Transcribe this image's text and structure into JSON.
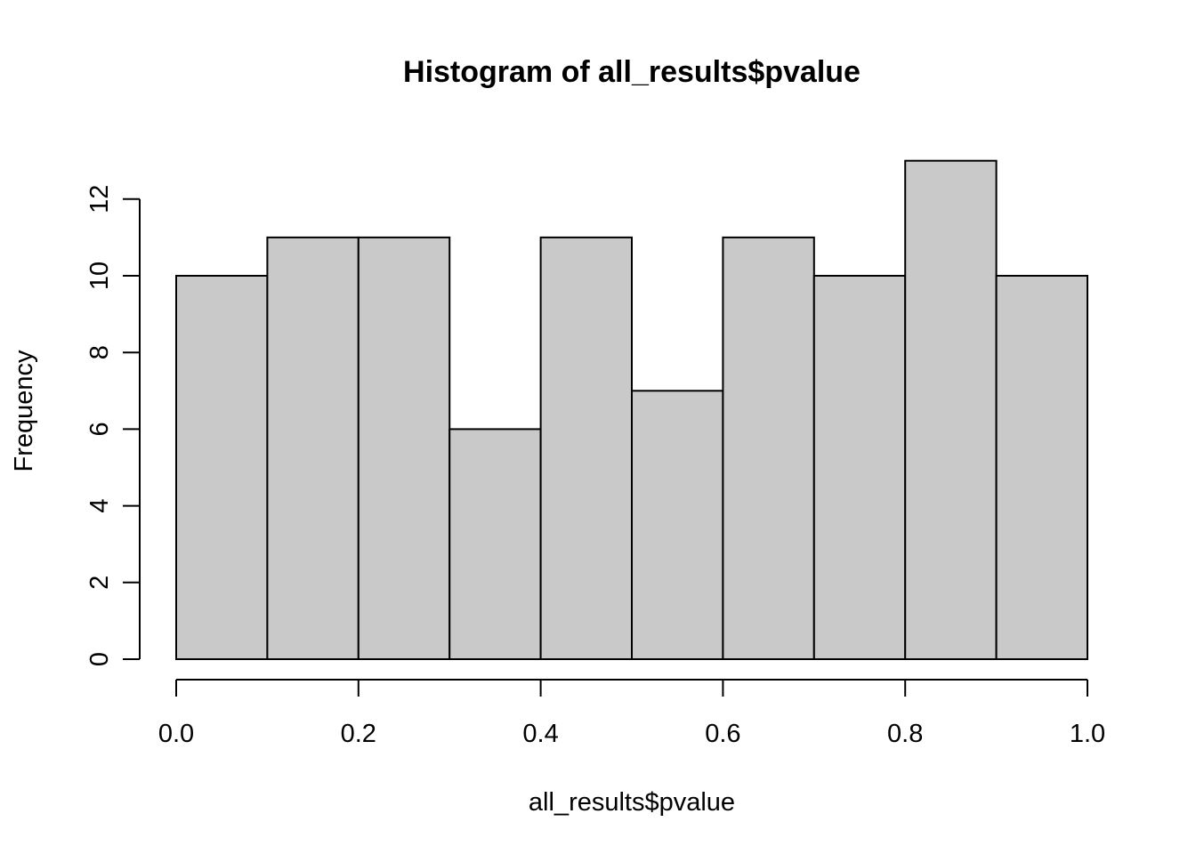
{
  "chart_data": {
    "type": "bar",
    "title": "Histogram of all_results$pvalue",
    "xlabel": "all_results$pvalue",
    "ylabel": "Frequency",
    "bins": [
      {
        "start": 0.0,
        "end": 0.1,
        "count": 10
      },
      {
        "start": 0.1,
        "end": 0.2,
        "count": 11
      },
      {
        "start": 0.2,
        "end": 0.3,
        "count": 11
      },
      {
        "start": 0.3,
        "end": 0.4,
        "count": 6
      },
      {
        "start": 0.4,
        "end": 0.5,
        "count": 11
      },
      {
        "start": 0.5,
        "end": 0.6,
        "count": 7
      },
      {
        "start": 0.6,
        "end": 0.7,
        "count": 11
      },
      {
        "start": 0.7,
        "end": 0.8,
        "count": 10
      },
      {
        "start": 0.8,
        "end": 0.9,
        "count": 13
      },
      {
        "start": 0.9,
        "end": 1.0,
        "count": 10
      }
    ],
    "xlim": [
      0,
      1
    ],
    "ylim": [
      0,
      13
    ],
    "xticks": [
      "0.0",
      "0.2",
      "0.4",
      "0.6",
      "0.8",
      "1.0"
    ],
    "yticks": [
      "0",
      "2",
      "4",
      "6",
      "8",
      "10",
      "12"
    ],
    "bar_color": "#c9c9c9",
    "grid": false
  }
}
